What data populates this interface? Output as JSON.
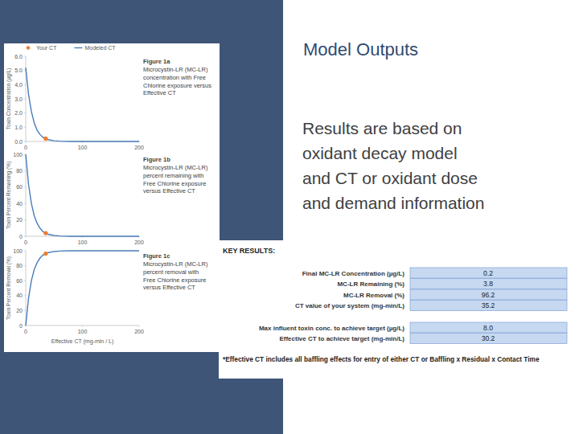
{
  "slide": {
    "title": "Model Outputs",
    "body_lines": [
      "Results are based on",
      "oxidant decay model",
      "and CT or oxidant dose",
      "and demand information"
    ]
  },
  "chart_data": [
    {
      "type": "line",
      "title": "Figure 1a",
      "subtitle": "Microcystin-LR (MC-LR) concentration with Free Chlorine exposure versus Effective CT",
      "ylabel": "Toxin Concentration (µg/L)",
      "xlim": [
        0,
        200
      ],
      "xticks": [
        0,
        100,
        200
      ],
      "ylim": [
        0,
        6
      ],
      "yticks": [
        {
          "value": 0,
          "label": "0.0"
        },
        {
          "value": 1,
          "label": "1.0"
        },
        {
          "value": 2,
          "label": "2.0"
        },
        {
          "value": 3,
          "label": "3.0"
        },
        {
          "value": 4,
          "label": "4.0"
        },
        {
          "value": 5,
          "label": "5.0"
        },
        {
          "value": 6,
          "label": "6.0"
        }
      ],
      "legend": "top",
      "series": [
        {
          "name": "Your CT",
          "type": "scatter",
          "marker": "circle",
          "color": "#ed7d31",
          "x": [
            35.2
          ],
          "values": [
            0.2
          ]
        },
        {
          "name": "Modeled CT",
          "type": "line",
          "color": "#4a7ebb",
          "x": [
            0,
            5,
            10,
            15,
            20,
            25,
            30,
            35,
            40,
            50,
            60,
            80,
            100,
            150,
            200
          ],
          "values": [
            5.2,
            3.3,
            2.1,
            1.3,
            0.8,
            0.5,
            0.3,
            0.2,
            0.13,
            0.05,
            0.02,
            0,
            0,
            0,
            0
          ]
        }
      ]
    },
    {
      "type": "line",
      "title": "Figure 1b",
      "subtitle": "Microcystin-LR (MC-LR) percent remaining with Free Chlorine exposure versus Effective CT",
      "ylabel": "Toxin Percent Remaining (%)",
      "xlim": [
        0,
        200
      ],
      "xticks": [
        0,
        100,
        200
      ],
      "ylim": [
        0,
        100
      ],
      "yticks": [
        0,
        20,
        40,
        60,
        80,
        100
      ],
      "series": [
        {
          "type": "scatter",
          "marker": "circle",
          "color": "#ed7d31",
          "x": [
            35.2
          ],
          "values": [
            3.8
          ]
        },
        {
          "type": "line",
          "color": "#4a7ebb",
          "x": [
            0,
            5,
            10,
            15,
            20,
            25,
            30,
            35,
            40,
            50,
            60,
            80,
            100,
            150,
            200
          ],
          "values": [
            100,
            63,
            40,
            25,
            16,
            10,
            6,
            3.8,
            2.4,
            1,
            0.4,
            0,
            0,
            0,
            0
          ]
        }
      ]
    },
    {
      "type": "line",
      "title": "Figure 1c",
      "subtitle": "Microcystin-LR (MC-LR) percent removal with Free Chlorine exposure versus Effective CT",
      "ylabel": "Toxin Percent Removal (%)",
      "xlabel": "Effective CT (mg-min / L)",
      "xlim": [
        0,
        200
      ],
      "xticks": [
        0,
        100,
        200
      ],
      "ylim": [
        0,
        100
      ],
      "yticks": [
        0,
        20,
        40,
        60,
        80,
        100
      ],
      "series": [
        {
          "type": "scatter",
          "marker": "circle",
          "color": "#ed7d31",
          "x": [
            35.2
          ],
          "values": [
            96.2
          ]
        },
        {
          "type": "line",
          "color": "#4a7ebb",
          "x": [
            0,
            5,
            10,
            15,
            20,
            25,
            30,
            35,
            40,
            50,
            60,
            80,
            100,
            150,
            200
          ],
          "values": [
            0,
            37,
            60,
            75,
            84,
            90,
            94,
            96.2,
            97.6,
            99,
            99.6,
            100,
            100,
            100,
            100
          ]
        }
      ]
    }
  ],
  "key_results": {
    "heading": "KEY RESULTS:",
    "rows": [
      {
        "label": "Final MC-LR Concentration (µg/L)",
        "value": "0.2"
      },
      {
        "label": "MC-LR Remaining (%)",
        "value": "3.8"
      },
      {
        "label": "MC-LR Removal (%)",
        "value": "96.2"
      },
      {
        "label": "CT value of your system (mg-min/L)",
        "value": "35.2"
      }
    ],
    "target_rows": [
      {
        "label": "Max influent toxin conc. to achieve target (µg/L)",
        "value": "8.0"
      },
      {
        "label": "Effective CT to achieve target (mg-min/L)",
        "value": "30.2"
      }
    ],
    "footnote": "*Effective CT includes all baffling effects for entry of either CT or Baffling x Residual x Contact Time"
  }
}
